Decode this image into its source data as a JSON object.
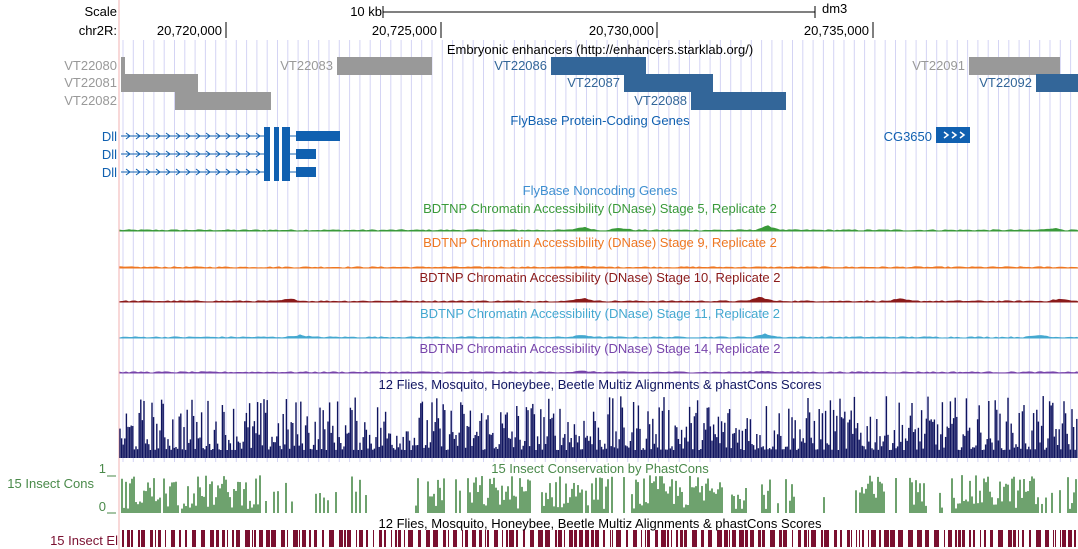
{
  "colors": {
    "gray_feature": "#999999",
    "blue_feature": "#336699",
    "gene_blue": "#1060b0",
    "noncoding_blue": "#3e8fd0",
    "stage5": "#3a9a3a",
    "stage9": "#ee7722",
    "stage10": "#8b1a1a",
    "stage11": "#44a8d0",
    "stage14": "#7744aa",
    "multiz": "#101560",
    "phastcons": "#4a8a4a",
    "elements": "#7a1030"
  },
  "ruler": {
    "scale_label": "Scale",
    "scale_value": "10 kb",
    "assembly": "dm3",
    "chrom_label": "chr2R:",
    "ticks": [
      "20,720,000",
      "20,725,000",
      "20,730,000",
      "20,735,000"
    ]
  },
  "tracks": {
    "enhancers": {
      "title": "Embryonic enhancers (http://enhancers.starklab.org/)",
      "items": [
        {
          "name": "VT22080",
          "row": 0,
          "highlight": false
        },
        {
          "name": "VT22081",
          "row": 1,
          "highlight": false
        },
        {
          "name": "VT22082",
          "row": 2,
          "highlight": false
        },
        {
          "name": "VT22083",
          "row": 0,
          "highlight": false
        },
        {
          "name": "VT22086",
          "row": 0,
          "highlight": true
        },
        {
          "name": "VT22087",
          "row": 1,
          "highlight": true
        },
        {
          "name": "VT22088",
          "row": 2,
          "highlight": true
        },
        {
          "name": "VT22091",
          "row": 0,
          "highlight": false
        },
        {
          "name": "VT22092",
          "row": 1,
          "highlight": true
        }
      ]
    },
    "genes": {
      "title": "FlyBase Protein-Coding Genes",
      "items": [
        {
          "name": "Dll"
        },
        {
          "name": "Dll"
        },
        {
          "name": "Dll"
        },
        {
          "name": "CG3650"
        }
      ]
    },
    "noncoding": {
      "title": "FlyBase Noncoding Genes"
    },
    "dnase": [
      {
        "title": "BDTNP Chromatin Accessibility (DNase) Stage 5, Replicate 2",
        "color_key": "stage5"
      },
      {
        "title": "BDTNP Chromatin Accessibility (DNase) Stage 9, Replicate 2",
        "color_key": "stage9"
      },
      {
        "title": "BDTNP Chromatin Accessibility (DNase) Stage 10, Replicate 2",
        "color_key": "stage10"
      },
      {
        "title": "BDTNP Chromatin Accessibility (DNase) Stage 11, Replicate 2",
        "color_key": "stage11"
      },
      {
        "title": "BDTNP Chromatin Accessibility (DNase) Stage 14, Replicate 2",
        "color_key": "stage14"
      }
    ],
    "multiz": {
      "title": "12 Flies, Mosquito, Honeybee, Beetle Multiz Alignments & phastCons Scores"
    },
    "phastcons": {
      "title": "15 Insect Conservation by PhastCons",
      "side_label": "15 Insect Cons",
      "max_label": "1",
      "min_label": "0"
    },
    "elements": {
      "title": "12 Flies, Mosquito, Honeybee, Beetle Multiz Alignments & phastCons Scores",
      "side_label": "15 Insect El"
    }
  }
}
